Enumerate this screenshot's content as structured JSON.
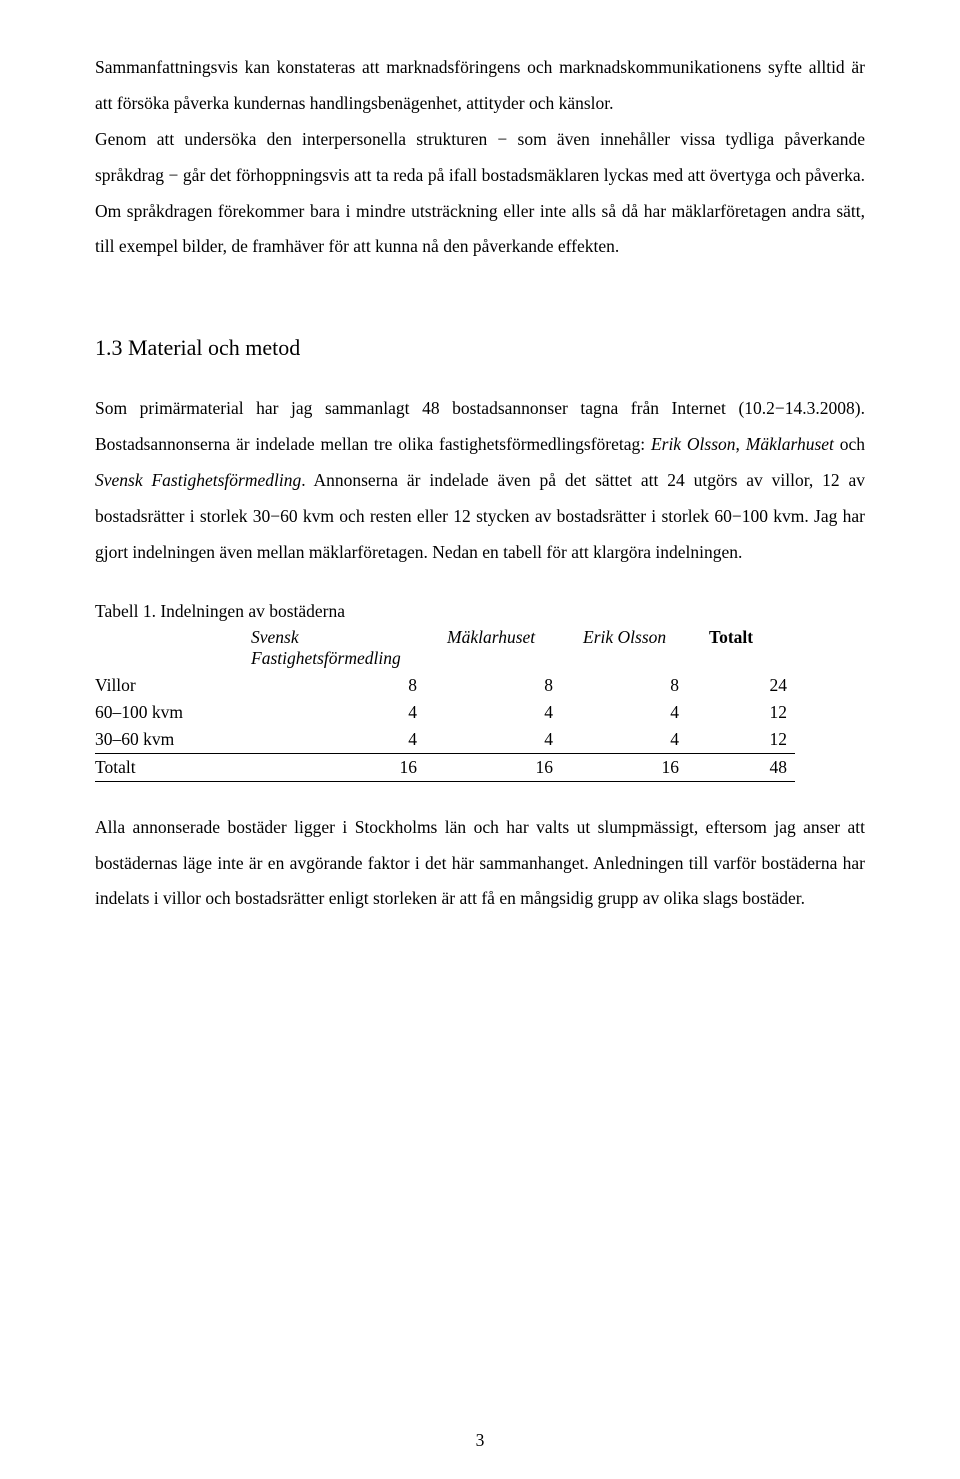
{
  "paragraphs": {
    "p1": "Sammanfattningsvis kan konstateras att marknadsföringens och marknadskommunikationens syfte alltid är att försöka påverka kundernas handlingsbenägenhet, attityder och känslor.",
    "p2": "Genom att undersöka den interpersonella strukturen − som även innehåller vissa tydliga påverkande språkdrag − går det förhoppningsvis att ta reda på ifall bostadsmäklaren lyckas med att övertyga och påverka. Om språkdragen förekommer bara i mindre utsträckning eller inte alls så då har mäklarföretagen andra sätt, till exempel bilder, de framhäver för att kunna nå den påverkande effekten.",
    "p3_a": "Som primärmaterial har jag sammanlagt 48 bostadsannonser tagna från Internet (10.2−14.3.2008). Bostadsannonserna är indelade mellan tre olika fastighetsförmedlingsföretag: ",
    "p3_erik": "Erik Olsson",
    "p3_sep1": ", ",
    "p3_mak": "Mäklarhuset",
    "p3_mid": " och ",
    "p3_sv": "Svensk Fastighetsförmedling",
    "p3_b": ". Annonserna är indelade även på det sättet att 24 utgörs av villor, 12 av bostadsrätter i storlek 30−60 kvm och resten eller 12 stycken av bostadsrätter i storlek 60−100 kvm. Jag har gjort indelningen även mellan mäklarföretagen. Nedan en tabell för att klargöra indelningen.",
    "p4": "Alla annonserade bostäder ligger i Stockholms län och har valts ut slumpmässigt, eftersom jag anser att bostädernas läge inte är en avgörande faktor i det här sammanhanget. Anledningen till varför bostäderna har indelats i villor och bostadsrätter enligt storleken är att få en mångsidig grupp av olika slags bostäder."
  },
  "section_heading": "1.3  Material och metod",
  "table": {
    "caption": "Tabell 1. Indelningen av bostäderna",
    "headers": {
      "col1_line1": "Svensk",
      "col1_line2": "Fastighetsförmedling",
      "col2": "Mäklarhuset",
      "col3": "Erik Olsson",
      "col4": "Totalt"
    },
    "rows": [
      {
        "label": "Villor",
        "a": "8",
        "b": "8",
        "c": "8",
        "d": "24"
      },
      {
        "label": "60–100 kvm",
        "a": "4",
        "b": "4",
        "c": "4",
        "d": "12"
      },
      {
        "label": "30–60 kvm",
        "a": "4",
        "b": "4",
        "c": "4",
        "d": "12"
      }
    ],
    "total": {
      "label": "Totalt",
      "a": "16",
      "b": "16",
      "c": "16",
      "d": "48"
    }
  },
  "page_number": "3"
}
